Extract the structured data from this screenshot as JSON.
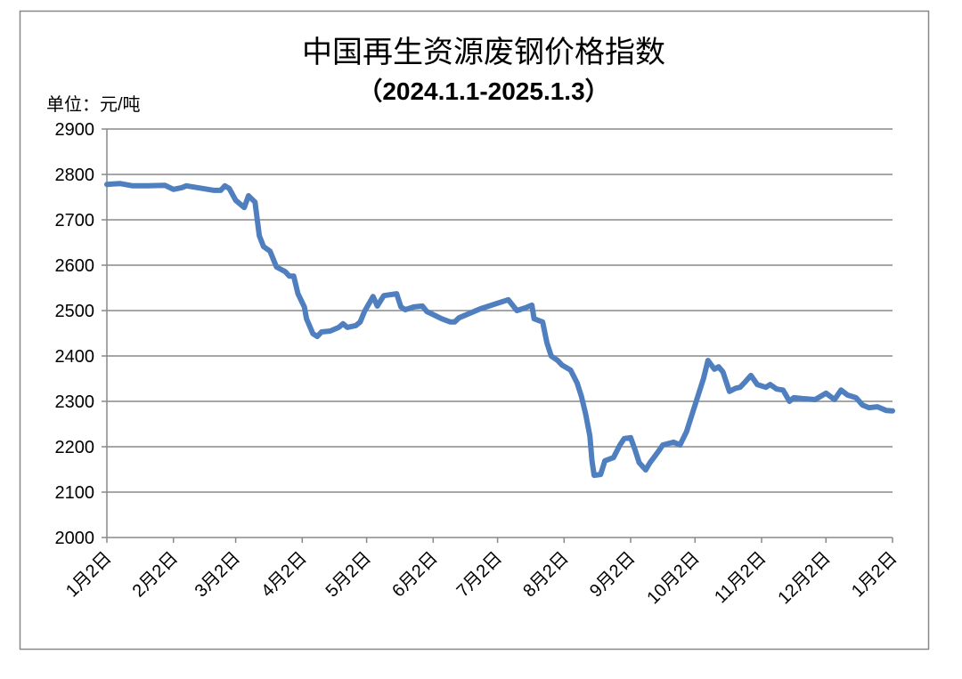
{
  "chart_data": {
    "type": "line",
    "title": "中国再生资源废钢价格指数",
    "subtitle": "（2024.1.1-2025.1.3）",
    "unit_label": "单位：元/吨",
    "xlim": [
      0,
      366
    ],
    "xticks": [
      {
        "value": 0,
        "label": "1月2日"
      },
      {
        "value": 31,
        "label": "2月2日"
      },
      {
        "value": 60,
        "label": "3月2日"
      },
      {
        "value": 91,
        "label": "4月2日"
      },
      {
        "value": 121,
        "label": "5月2日"
      },
      {
        "value": 152,
        "label": "6月2日"
      },
      {
        "value": 182,
        "label": "7月2日"
      },
      {
        "value": 213,
        "label": "8月2日"
      },
      {
        "value": 244,
        "label": "9月2日"
      },
      {
        "value": 274,
        "label": "10月2日"
      },
      {
        "value": 305,
        "label": "11月2日"
      },
      {
        "value": 335,
        "label": "12月2日"
      },
      {
        "value": 366,
        "label": "1月2日"
      }
    ],
    "ylim": [
      2000,
      2900
    ],
    "yticks": [
      2000,
      2100,
      2200,
      2300,
      2400,
      2500,
      2600,
      2700,
      2800,
      2900
    ],
    "grid": true,
    "color": "#4f7fbf",
    "x": [
      0,
      6,
      12,
      19,
      27,
      31,
      35,
      37,
      50,
      53,
      55,
      57,
      60,
      64,
      66,
      69,
      71,
      73,
      76,
      79,
      83,
      85,
      87,
      89,
      92,
      93,
      96,
      98,
      100,
      104,
      108,
      110,
      112,
      116,
      118,
      120,
      124,
      126,
      129,
      135,
      137,
      139,
      143,
      147,
      149,
      156,
      160,
      162,
      164,
      174,
      187,
      191,
      195,
      198,
      199,
      203,
      205,
      207,
      210,
      212,
      216,
      219,
      221,
      223,
      225,
      226,
      227,
      230,
      232,
      236,
      239,
      241,
      244,
      246,
      248,
      251,
      253,
      257,
      259,
      264,
      267,
      270,
      274,
      278,
      280,
      283,
      285,
      287,
      290,
      293,
      295,
      297,
      300,
      303,
      307,
      309,
      312,
      315,
      318,
      320,
      324,
      330,
      335,
      339,
      342,
      345,
      349,
      352,
      355,
      359,
      363,
      366
    ],
    "values": [
      2778,
      2780,
      2775,
      2775,
      2776,
      2767,
      2771,
      2775,
      2765,
      2765,
      2775,
      2769,
      2743,
      2727,
      2753,
      2739,
      2665,
      2641,
      2631,
      2596,
      2586,
      2576,
      2576,
      2537,
      2508,
      2482,
      2449,
      2443,
      2453,
      2455,
      2463,
      2471,
      2463,
      2467,
      2475,
      2498,
      2531,
      2510,
      2533,
      2537,
      2508,
      2502,
      2508,
      2510,
      2498,
      2482,
      2475,
      2475,
      2484,
      2504,
      2524,
      2500,
      2506,
      2512,
      2482,
      2475,
      2429,
      2400,
      2390,
      2380,
      2369,
      2341,
      2312,
      2273,
      2224,
      2169,
      2137,
      2139,
      2169,
      2176,
      2204,
      2218,
      2220,
      2194,
      2165,
      2149,
      2165,
      2190,
      2204,
      2210,
      2204,
      2233,
      2292,
      2351,
      2390,
      2371,
      2376,
      2365,
      2322,
      2329,
      2331,
      2341,
      2357,
      2337,
      2331,
      2337,
      2327,
      2325,
      2300,
      2308,
      2306,
      2304,
      2318,
      2304,
      2325,
      2314,
      2308,
      2292,
      2286,
      2288,
      2280,
      2279
    ]
  }
}
